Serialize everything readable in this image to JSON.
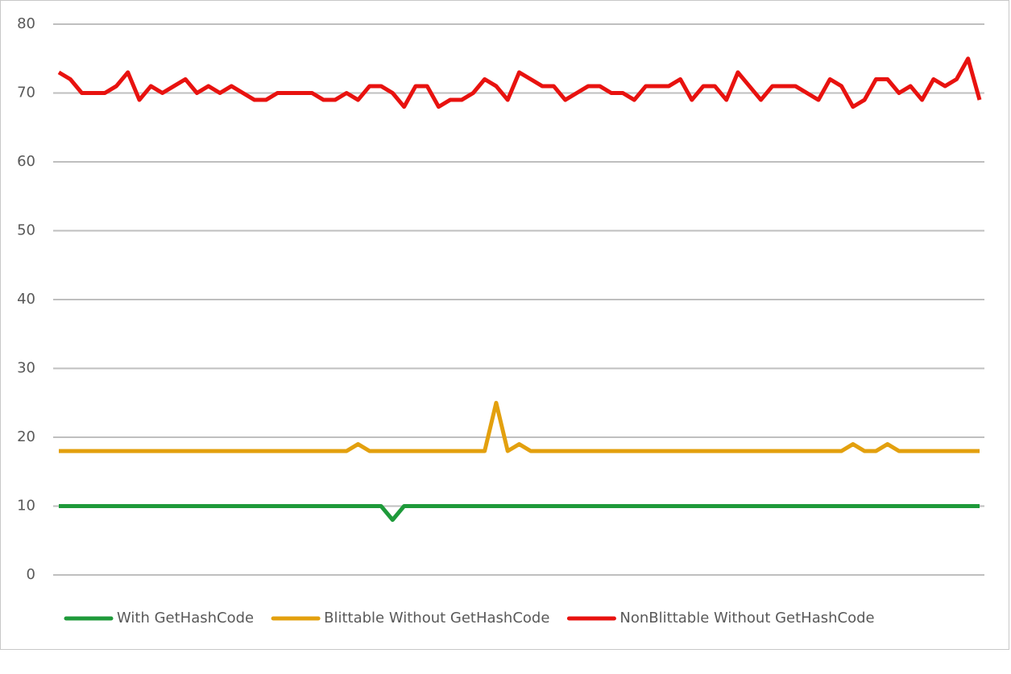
{
  "chart_data": {
    "type": "line",
    "categories": [
      null,
      null,
      null,
      null,
      null,
      null,
      null,
      null,
      null,
      null,
      null,
      null,
      null,
      null,
      null,
      null,
      null,
      null,
      null,
      null,
      null,
      null,
      null,
      null,
      null,
      null,
      null,
      null,
      null,
      null,
      null,
      null,
      null,
      null,
      null,
      null,
      null,
      null,
      null,
      null,
      null,
      null,
      null,
      null,
      null,
      null,
      null,
      null,
      null,
      null,
      null,
      null,
      null,
      null,
      null,
      null,
      null,
      null,
      null,
      null,
      null,
      null,
      null,
      null,
      null,
      null,
      null,
      null,
      null,
      null,
      null,
      null,
      null,
      null,
      null,
      null,
      null,
      null,
      null,
      null,
      null
    ],
    "series": [
      {
        "name": "With GetHashCode",
        "color": "#1e9a3a",
        "values": [
          10,
          10,
          10,
          10,
          10,
          10,
          10,
          10,
          10,
          10,
          10,
          10,
          10,
          10,
          10,
          10,
          10,
          10,
          10,
          10,
          10,
          10,
          10,
          10,
          10,
          10,
          10,
          10,
          10,
          8,
          10,
          10,
          10,
          10,
          10,
          10,
          10,
          10,
          10,
          10,
          10,
          10,
          10,
          10,
          10,
          10,
          10,
          10,
          10,
          10,
          10,
          10,
          10,
          10,
          10,
          10,
          10,
          10,
          10,
          10,
          10,
          10,
          10,
          10,
          10,
          10,
          10,
          10,
          10,
          10,
          10,
          10,
          10,
          10,
          10,
          10,
          10,
          10,
          10,
          10,
          10
        ]
      },
      {
        "name": "Blittable Without GetHashCode",
        "color": "#e3a00e",
        "values": [
          18,
          18,
          18,
          18,
          18,
          18,
          18,
          18,
          18,
          18,
          18,
          18,
          18,
          18,
          18,
          18,
          18,
          18,
          18,
          18,
          18,
          18,
          18,
          18,
          18,
          18,
          19,
          18,
          18,
          18,
          18,
          18,
          18,
          18,
          18,
          18,
          18,
          18,
          25,
          18,
          19,
          18,
          18,
          18,
          18,
          18,
          18,
          18,
          18,
          18,
          18,
          18,
          18,
          18,
          18,
          18,
          18,
          18,
          18,
          18,
          18,
          18,
          18,
          18,
          18,
          18,
          18,
          18,
          18,
          19,
          18,
          18,
          19,
          18,
          18,
          18,
          18,
          18,
          18,
          18,
          18
        ]
      },
      {
        "name": "NonBlittable Without GetHashCode",
        "color": "#e8120f",
        "values": [
          73,
          72,
          70,
          70,
          70,
          71,
          73,
          69,
          71,
          70,
          71,
          72,
          70,
          71,
          70,
          71,
          70,
          69,
          69,
          70,
          70,
          70,
          70,
          69,
          69,
          70,
          69,
          71,
          71,
          70,
          68,
          71,
          71,
          68,
          69,
          69,
          70,
          72,
          71,
          69,
          73,
          72,
          71,
          71,
          69,
          70,
          71,
          71,
          70,
          70,
          69,
          71,
          71,
          71,
          72,
          69,
          71,
          71,
          69,
          73,
          71,
          69,
          71,
          71,
          71,
          70,
          69,
          72,
          71,
          68,
          69,
          72,
          72,
          70,
          71,
          69,
          72,
          71,
          72,
          75,
          69
        ]
      }
    ],
    "ylim": [
      0,
      80
    ],
    "yticks": [
      0,
      10,
      20,
      30,
      40,
      50,
      60,
      70,
      80
    ],
    "grid": true,
    "legend": "bottom"
  }
}
